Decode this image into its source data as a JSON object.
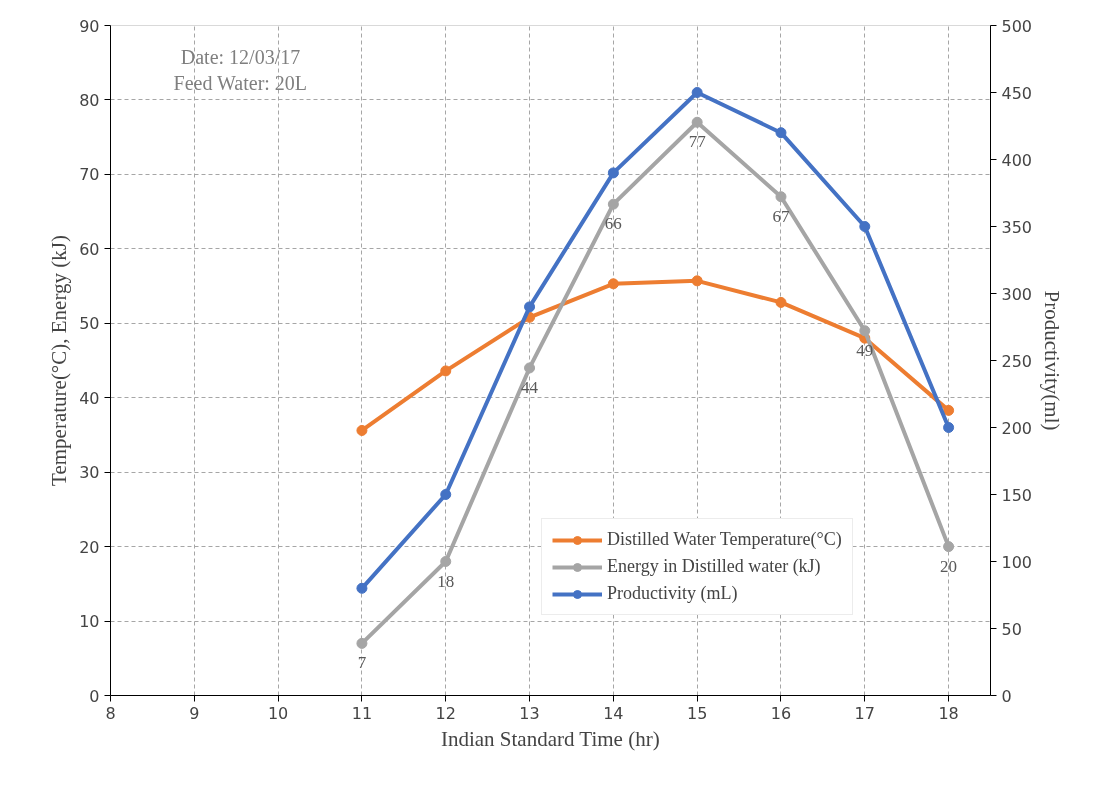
{
  "chart_data": {
    "type": "line",
    "xlabel": "Indian Standard Time (hr)",
    "ylabel": "Temperature(°C), Energy (kJ)",
    "y2label": "Productivity(ml)",
    "x": [
      11,
      12,
      13,
      14,
      15,
      16,
      17,
      18
    ],
    "xlim": [
      8,
      18.5
    ],
    "xticks": [
      8,
      9,
      10,
      11,
      12,
      13,
      14,
      15,
      16,
      17,
      18
    ],
    "ylim": [
      0,
      90
    ],
    "yticks": [
      0,
      10,
      20,
      30,
      40,
      50,
      60,
      70,
      80,
      90
    ],
    "y2lim": [
      0,
      500
    ],
    "y2ticks": [
      0,
      50,
      100,
      150,
      200,
      250,
      300,
      350,
      400,
      450,
      500
    ],
    "series": [
      {
        "name": "Distilled Water Temperature(°C)",
        "color": "#ed7d31",
        "values": [
          35.6,
          43.6,
          50.8,
          55.3,
          55.7,
          52.8,
          48.0,
          38.3
        ]
      },
      {
        "name": "Energy in Distilled water (kJ)",
        "color": "#a5a5a5",
        "values": [
          7,
          18,
          44,
          66,
          77,
          67,
          49,
          20
        ],
        "value_labels": [
          "7",
          "18",
          "44",
          "66",
          "77",
          "67",
          "49",
          "20"
        ]
      },
      {
        "name": "Productivity (mL)",
        "color": "#4472c4",
        "axis": "y2",
        "values": [
          80,
          150,
          290,
          390,
          450,
          420,
          350,
          200
        ]
      }
    ],
    "annotations": [
      "Date: 12/03/17",
      "Feed Water: 20L"
    ],
    "grid": true,
    "legend": "bottom",
    "marker": "circle",
    "line_style": "solid"
  }
}
